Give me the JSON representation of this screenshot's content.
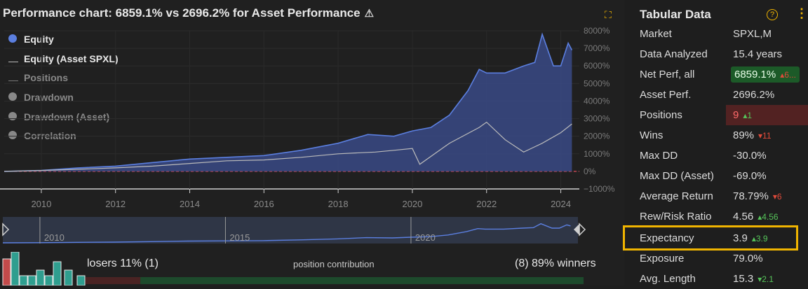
{
  "chart": {
    "title": "Performance chart: 6859.1% vs 2696.2% for Asset Performance",
    "legend": [
      {
        "label": "Equity",
        "marker": "dot",
        "color": "#5b7fe0",
        "active": true
      },
      {
        "label": "Equity (Asset SPXL)",
        "marker": "line",
        "color": "#bbbbbb",
        "active": true
      },
      {
        "label": "Positions",
        "marker": "line",
        "color": "#888888",
        "active": false
      },
      {
        "label": "Drawdown",
        "marker": "dot",
        "color": "#888888",
        "active": false
      },
      {
        "label": "Drawdown (Asset)",
        "marker": "dot",
        "color": "#888888",
        "active": false
      },
      {
        "label": "Correlation",
        "marker": "dot",
        "color": "#888888",
        "active": false
      }
    ],
    "y_ticks": [
      "8000%",
      "7000%",
      "6000%",
      "5000%",
      "4000%",
      "3000%",
      "2000%",
      "1000%",
      "0%",
      "−1000%"
    ],
    "x_ticks": [
      "2010",
      "2012",
      "2014",
      "2016",
      "2018",
      "2020",
      "2022",
      "2024"
    ],
    "navigator_labels": [
      "2010",
      "2015",
      "2020"
    ]
  },
  "chart_data": {
    "type": "area",
    "title": "Performance chart: 6859.1% vs 2696.2% for Asset Performance",
    "xlabel": "",
    "ylabel": "",
    "ylim": [
      -1000,
      8000
    ],
    "xlim": [
      2009,
      2024.5
    ],
    "series": [
      {
        "name": "Equity",
        "color": "#5b7fe0",
        "x": [
          2009.0,
          2010.0,
          2011.0,
          2012.0,
          2013.0,
          2014.0,
          2015.0,
          2016.0,
          2017.0,
          2018.0,
          2018.8,
          2019.5,
          2020.0,
          2020.5,
          2021.0,
          2021.5,
          2021.8,
          2022.0,
          2022.5,
          2023.0,
          2023.3,
          2023.5,
          2023.8,
          2024.0,
          2024.2,
          2024.3
        ],
        "y": [
          0,
          50,
          200,
          300,
          500,
          700,
          800,
          900,
          1200,
          1600,
          2100,
          2000,
          2300,
          2500,
          3200,
          4600,
          5800,
          5600,
          5600,
          6000,
          6200,
          7800,
          6000,
          6000,
          7300,
          6900
        ]
      },
      {
        "name": "Equity (Asset SPXL)",
        "color": "#bbbbbb",
        "x": [
          2009.0,
          2010.0,
          2011.0,
          2012.0,
          2013.0,
          2014.0,
          2015.0,
          2016.0,
          2017.0,
          2018.0,
          2019.0,
          2019.5,
          2020.0,
          2020.2,
          2021.0,
          2021.8,
          2022.0,
          2022.5,
          2023.0,
          2023.5,
          2024.0,
          2024.3
        ],
        "y": [
          0,
          50,
          120,
          200,
          300,
          450,
          600,
          650,
          800,
          1000,
          1100,
          1200,
          1300,
          400,
          1600,
          2500,
          2800,
          1800,
          1100,
          1600,
          2200,
          2700
        ]
      }
    ]
  },
  "table": {
    "title": "Tabular Data",
    "rows": [
      {
        "key": "Market",
        "value": "SPXL,M"
      },
      {
        "key": "Data Analyzed",
        "value": "15.4 years"
      },
      {
        "key": "Net Perf, all",
        "value": "6859.1%",
        "change": "▴6...",
        "dir": "dn",
        "style": "green"
      },
      {
        "key": "Asset Perf.",
        "value": "2696.2%"
      },
      {
        "key": "Positions",
        "value": "9",
        "change": "▴1",
        "dir": "up",
        "style": "redrow"
      },
      {
        "key": "Wins",
        "value": "89%",
        "change": "▾11",
        "dir": "dn"
      },
      {
        "key": "Max DD",
        "value": "-30.0%"
      },
      {
        "key": "Max DD (Asset)",
        "value": "-69.0%"
      },
      {
        "key": "Average Return",
        "value": "78.79%",
        "change": "▾6",
        "dir": "dn"
      },
      {
        "key": "Rew/Risk Ratio",
        "value": "4.56",
        "change": "▴4.56",
        "dir": "up"
      },
      {
        "key": "Expectancy",
        "value": "3.9",
        "change": "▴3.9",
        "dir": "up"
      },
      {
        "key": "Exposure",
        "value": "79.0%"
      },
      {
        "key": "Avg. Length",
        "value": "15.3",
        "change": "▾2.1",
        "dir": "up"
      }
    ]
  },
  "contribution": {
    "losers_text": "losers 11% (1)",
    "center_text": "position contribution",
    "winners_text": "(8) 89% winners",
    "losers_pct": 11,
    "winners_pct": 89
  },
  "colors": {
    "equity": "#5b7fe0",
    "asset": "#bbbbbb",
    "accent": "#f0b400",
    "zero_line": "#e04a5a",
    "green": "#2f9e5a",
    "red": "#c24a4a"
  }
}
